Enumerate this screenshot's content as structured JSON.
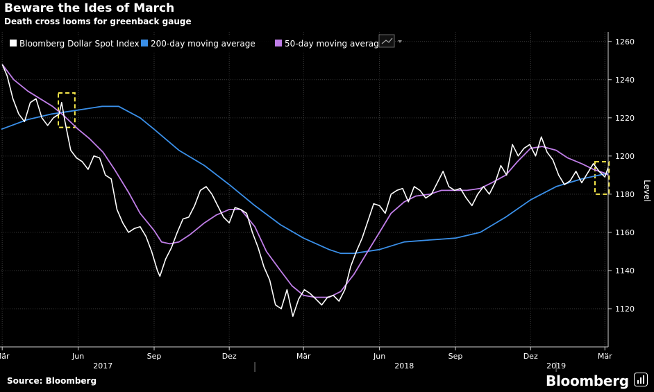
{
  "title": "Beware the Ides of March",
  "subtitle": "Death cross looms for greenback gauge",
  "source": "Source: Bloomberg",
  "brand": "Bloomberg",
  "colors": {
    "background": "#000000",
    "index": "#ffffff",
    "ma200": "#3a8fe8",
    "ma50": "#c07ee8",
    "highlight": "#f7e84a",
    "grid": "#3a3a3a"
  },
  "chart_data": {
    "type": "line",
    "x_unit": "date",
    "ylabel": "Level",
    "ylim": [
      1100,
      1265
    ],
    "yticks": [
      1120,
      1140,
      1160,
      1180,
      1200,
      1220,
      1240,
      1260
    ],
    "xlim": [
      "2017-02-28",
      "2019-03-05"
    ],
    "grid": true,
    "legend_position": "top-left",
    "x_ticks": [
      {
        "date": "2017-03-01",
        "label": "Mär"
      },
      {
        "date": "2017-06-01",
        "label": "Jun"
      },
      {
        "date": "2017-09-01",
        "label": "Sep"
      },
      {
        "date": "2017-12-01",
        "label": "Dez"
      },
      {
        "date": "2018-03-01",
        "label": "Mär"
      },
      {
        "date": "2018-06-01",
        "label": "Jun"
      },
      {
        "date": "2018-09-01",
        "label": "Sep"
      },
      {
        "date": "2018-12-01",
        "label": "Dez"
      },
      {
        "date": "2019-03-01",
        "label": "Mär"
      }
    ],
    "year_labels": [
      {
        "date": "2017-07-01",
        "label": "2017"
      },
      {
        "date": "2018-07-01",
        "label": "2018"
      },
      {
        "date": "2019-01-01",
        "label": "2019"
      }
    ],
    "series": [
      {
        "name": "Bloomberg Dollar Spot Index",
        "color": "#ffffff",
        "points": [
          [
            "2017-03-01",
            1248
          ],
          [
            "2017-03-07",
            1242
          ],
          [
            "2017-03-14",
            1230
          ],
          [
            "2017-03-21",
            1222
          ],
          [
            "2017-03-28",
            1218
          ],
          [
            "2017-04-04",
            1228
          ],
          [
            "2017-04-11",
            1230
          ],
          [
            "2017-04-18",
            1220
          ],
          [
            "2017-04-25",
            1216
          ],
          [
            "2017-05-02",
            1220
          ],
          [
            "2017-05-09",
            1222
          ],
          [
            "2017-05-12",
            1228
          ],
          [
            "2017-05-16",
            1218
          ],
          [
            "2017-05-23",
            1203
          ],
          [
            "2017-05-30",
            1199
          ],
          [
            "2017-06-06",
            1197
          ],
          [
            "2017-06-13",
            1193
          ],
          [
            "2017-06-20",
            1200
          ],
          [
            "2017-06-27",
            1199
          ],
          [
            "2017-07-04",
            1190
          ],
          [
            "2017-07-11",
            1188
          ],
          [
            "2017-07-18",
            1172
          ],
          [
            "2017-07-25",
            1165
          ],
          [
            "2017-08-01",
            1160
          ],
          [
            "2017-08-08",
            1162
          ],
          [
            "2017-08-15",
            1163
          ],
          [
            "2017-08-22",
            1158
          ],
          [
            "2017-08-29",
            1150
          ],
          [
            "2017-09-05",
            1140
          ],
          [
            "2017-09-08",
            1137
          ],
          [
            "2017-09-15",
            1146
          ],
          [
            "2017-09-22",
            1152
          ],
          [
            "2017-09-29",
            1160
          ],
          [
            "2017-10-06",
            1167
          ],
          [
            "2017-10-13",
            1168
          ],
          [
            "2017-10-20",
            1174
          ],
          [
            "2017-10-27",
            1182
          ],
          [
            "2017-11-03",
            1184
          ],
          [
            "2017-11-10",
            1180
          ],
          [
            "2017-11-17",
            1174
          ],
          [
            "2017-11-24",
            1168
          ],
          [
            "2017-12-01",
            1165
          ],
          [
            "2017-12-08",
            1173
          ],
          [
            "2017-12-15",
            1172
          ],
          [
            "2017-12-22",
            1170
          ],
          [
            "2017-12-29",
            1160
          ],
          [
            "2018-01-05",
            1152
          ],
          [
            "2018-01-12",
            1142
          ],
          [
            "2018-01-19",
            1135
          ],
          [
            "2018-01-26",
            1122
          ],
          [
            "2018-02-02",
            1120
          ],
          [
            "2018-02-09",
            1130
          ],
          [
            "2018-02-16",
            1116
          ],
          [
            "2018-02-23",
            1125
          ],
          [
            "2018-03-02",
            1130
          ],
          [
            "2018-03-09",
            1128
          ],
          [
            "2018-03-16",
            1125
          ],
          [
            "2018-03-23",
            1122
          ],
          [
            "2018-03-30",
            1126
          ],
          [
            "2018-04-06",
            1127
          ],
          [
            "2018-04-13",
            1124
          ],
          [
            "2018-04-20",
            1130
          ],
          [
            "2018-04-27",
            1142
          ],
          [
            "2018-05-04",
            1150
          ],
          [
            "2018-05-11",
            1157
          ],
          [
            "2018-05-18",
            1166
          ],
          [
            "2018-05-25",
            1175
          ],
          [
            "2018-06-01",
            1174
          ],
          [
            "2018-06-08",
            1170
          ],
          [
            "2018-06-15",
            1180
          ],
          [
            "2018-06-22",
            1182
          ],
          [
            "2018-06-29",
            1183
          ],
          [
            "2018-07-06",
            1176
          ],
          [
            "2018-07-13",
            1184
          ],
          [
            "2018-07-20",
            1182
          ],
          [
            "2018-07-27",
            1178
          ],
          [
            "2018-08-03",
            1180
          ],
          [
            "2018-08-10",
            1186
          ],
          [
            "2018-08-17",
            1192
          ],
          [
            "2018-08-24",
            1184
          ],
          [
            "2018-08-31",
            1182
          ],
          [
            "2018-09-07",
            1183
          ],
          [
            "2018-09-14",
            1178
          ],
          [
            "2018-09-21",
            1174
          ],
          [
            "2018-09-28",
            1180
          ],
          [
            "2018-10-05",
            1184
          ],
          [
            "2018-10-12",
            1180
          ],
          [
            "2018-10-19",
            1186
          ],
          [
            "2018-10-26",
            1195
          ],
          [
            "2018-11-02",
            1190
          ],
          [
            "2018-11-09",
            1206
          ],
          [
            "2018-11-16",
            1200
          ],
          [
            "2018-11-23",
            1204
          ],
          [
            "2018-11-30",
            1206
          ],
          [
            "2018-12-07",
            1200
          ],
          [
            "2018-12-14",
            1210
          ],
          [
            "2018-12-21",
            1202
          ],
          [
            "2018-12-28",
            1198
          ],
          [
            "2019-01-04",
            1190
          ],
          [
            "2019-01-11",
            1185
          ],
          [
            "2019-01-18",
            1187
          ],
          [
            "2019-01-25",
            1192
          ],
          [
            "2019-02-01",
            1186
          ],
          [
            "2019-02-08",
            1191
          ],
          [
            "2019-02-15",
            1196
          ],
          [
            "2019-02-22",
            1192
          ],
          [
            "2019-03-01",
            1189
          ],
          [
            "2019-03-05",
            1194
          ]
        ]
      },
      {
        "name": "200-day moving average",
        "color": "#3a8fe8",
        "points": [
          [
            "2017-02-28",
            1214
          ],
          [
            "2017-03-31",
            1219
          ],
          [
            "2017-04-30",
            1222
          ],
          [
            "2017-05-31",
            1224
          ],
          [
            "2017-06-30",
            1226
          ],
          [
            "2017-07-20",
            1226
          ],
          [
            "2017-08-15",
            1220
          ],
          [
            "2017-09-01",
            1214
          ],
          [
            "2017-10-01",
            1203
          ],
          [
            "2017-11-01",
            1195
          ],
          [
            "2017-12-01",
            1185
          ],
          [
            "2018-01-01",
            1174
          ],
          [
            "2018-02-01",
            1164
          ],
          [
            "2018-03-01",
            1157
          ],
          [
            "2018-04-01",
            1151
          ],
          [
            "2018-04-15",
            1149
          ],
          [
            "2018-05-01",
            1149
          ],
          [
            "2018-06-01",
            1151
          ],
          [
            "2018-07-01",
            1155
          ],
          [
            "2018-08-01",
            1156
          ],
          [
            "2018-09-01",
            1157
          ],
          [
            "2018-10-01",
            1160
          ],
          [
            "2018-11-01",
            1168
          ],
          [
            "2018-12-01",
            1177
          ],
          [
            "2019-01-01",
            1184
          ],
          [
            "2019-02-01",
            1188
          ],
          [
            "2019-03-05",
            1191
          ]
        ]
      },
      {
        "name": "50-day moving average",
        "color": "#c07ee8",
        "points": [
          [
            "2017-03-01",
            1248
          ],
          [
            "2017-03-15",
            1240
          ],
          [
            "2017-04-01",
            1234
          ],
          [
            "2017-05-01",
            1226
          ],
          [
            "2017-05-15",
            1221
          ],
          [
            "2017-06-01",
            1214
          ],
          [
            "2017-06-15",
            1209
          ],
          [
            "2017-07-01",
            1202
          ],
          [
            "2017-07-15",
            1193
          ],
          [
            "2017-08-01",
            1181
          ],
          [
            "2017-08-15",
            1170
          ],
          [
            "2017-09-01",
            1161
          ],
          [
            "2017-09-10",
            1155
          ],
          [
            "2017-09-20",
            1154
          ],
          [
            "2017-10-01",
            1155
          ],
          [
            "2017-10-15",
            1159
          ],
          [
            "2017-11-01",
            1165
          ],
          [
            "2017-11-15",
            1169
          ],
          [
            "2017-12-01",
            1172
          ],
          [
            "2017-12-15",
            1172
          ],
          [
            "2018-01-01",
            1163
          ],
          [
            "2018-01-15",
            1150
          ],
          [
            "2018-02-01",
            1140
          ],
          [
            "2018-02-15",
            1132
          ],
          [
            "2018-03-01",
            1127
          ],
          [
            "2018-03-15",
            1126
          ],
          [
            "2018-04-01",
            1126
          ],
          [
            "2018-04-15",
            1129
          ],
          [
            "2018-05-01",
            1138
          ],
          [
            "2018-05-15",
            1148
          ],
          [
            "2018-06-01",
            1160
          ],
          [
            "2018-06-15",
            1170
          ],
          [
            "2018-07-01",
            1176
          ],
          [
            "2018-07-15",
            1179
          ],
          [
            "2018-08-01",
            1180
          ],
          [
            "2018-08-15",
            1182
          ],
          [
            "2018-09-01",
            1182
          ],
          [
            "2018-09-15",
            1182
          ],
          [
            "2018-10-01",
            1183
          ],
          [
            "2018-10-15",
            1186
          ],
          [
            "2018-11-01",
            1190
          ],
          [
            "2018-11-15",
            1197
          ],
          [
            "2018-12-01",
            1204
          ],
          [
            "2018-12-15",
            1205
          ],
          [
            "2019-01-01",
            1203
          ],
          [
            "2019-01-15",
            1199
          ],
          [
            "2019-02-01",
            1196
          ],
          [
            "2019-02-15",
            1193
          ],
          [
            "2019-03-01",
            1191
          ],
          [
            "2019-03-05",
            1190
          ]
        ]
      }
    ],
    "highlights": [
      {
        "x_start": "2017-05-08",
        "x_end": "2017-05-28",
        "y_low": 1215,
        "y_high": 1233
      },
      {
        "x_start": "2019-02-17",
        "x_end": "2019-03-06",
        "y_low": 1180,
        "y_high": 1197
      }
    ]
  }
}
